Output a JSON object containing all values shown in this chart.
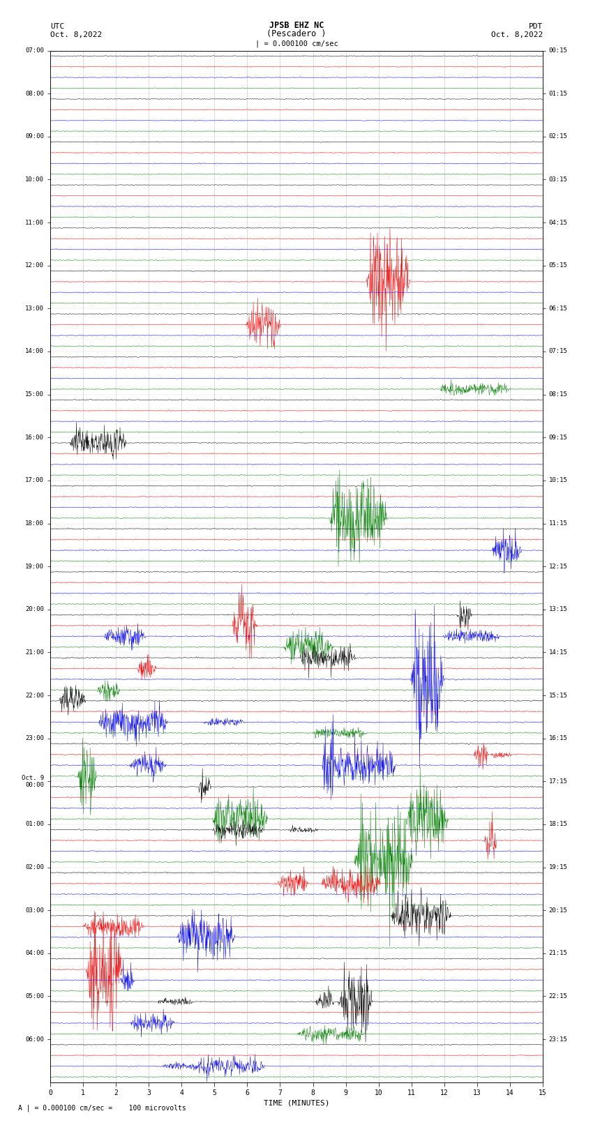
{
  "title_line1": "JPSB EHZ NC",
  "title_line2": "(Pescadero )",
  "scale_label": "| = 0.000100 cm/sec",
  "left_label": "UTC",
  "left_date": "Oct. 8,2022",
  "right_label": "PDT",
  "right_date": "Oct. 8,2022",
  "bottom_label": "TIME (MINUTES)",
  "bottom_note": "A | = 0.000100 cm/sec =    100 microvolts",
  "utc_hour_labels": [
    "07:00",
    "08:00",
    "09:00",
    "10:00",
    "11:00",
    "12:00",
    "13:00",
    "14:00",
    "15:00",
    "16:00",
    "17:00",
    "18:00",
    "19:00",
    "20:00",
    "21:00",
    "22:00",
    "23:00",
    "Oct. 9\n00:00",
    "01:00",
    "02:00",
    "03:00",
    "04:00",
    "05:00",
    "06:00"
  ],
  "pdt_hour_labels": [
    "00:15",
    "01:15",
    "02:15",
    "03:15",
    "04:15",
    "05:15",
    "06:15",
    "07:15",
    "08:15",
    "09:15",
    "10:15",
    "11:15",
    "12:15",
    "13:15",
    "14:15",
    "15:15",
    "16:15",
    "17:15",
    "18:15",
    "19:15",
    "20:15",
    "21:15",
    "22:15",
    "23:15"
  ],
  "n_hours": 24,
  "traces_per_hour": 4,
  "minutes": 15,
  "fig_width": 8.5,
  "fig_height": 16.13,
  "bg_color": "white",
  "trace_color_cycle": [
    "black",
    "red",
    "blue",
    "green"
  ],
  "base_noise": 0.08,
  "event_noise_threshold_row": 44,
  "grid_color": "#888888",
  "grid_alpha": 0.5
}
